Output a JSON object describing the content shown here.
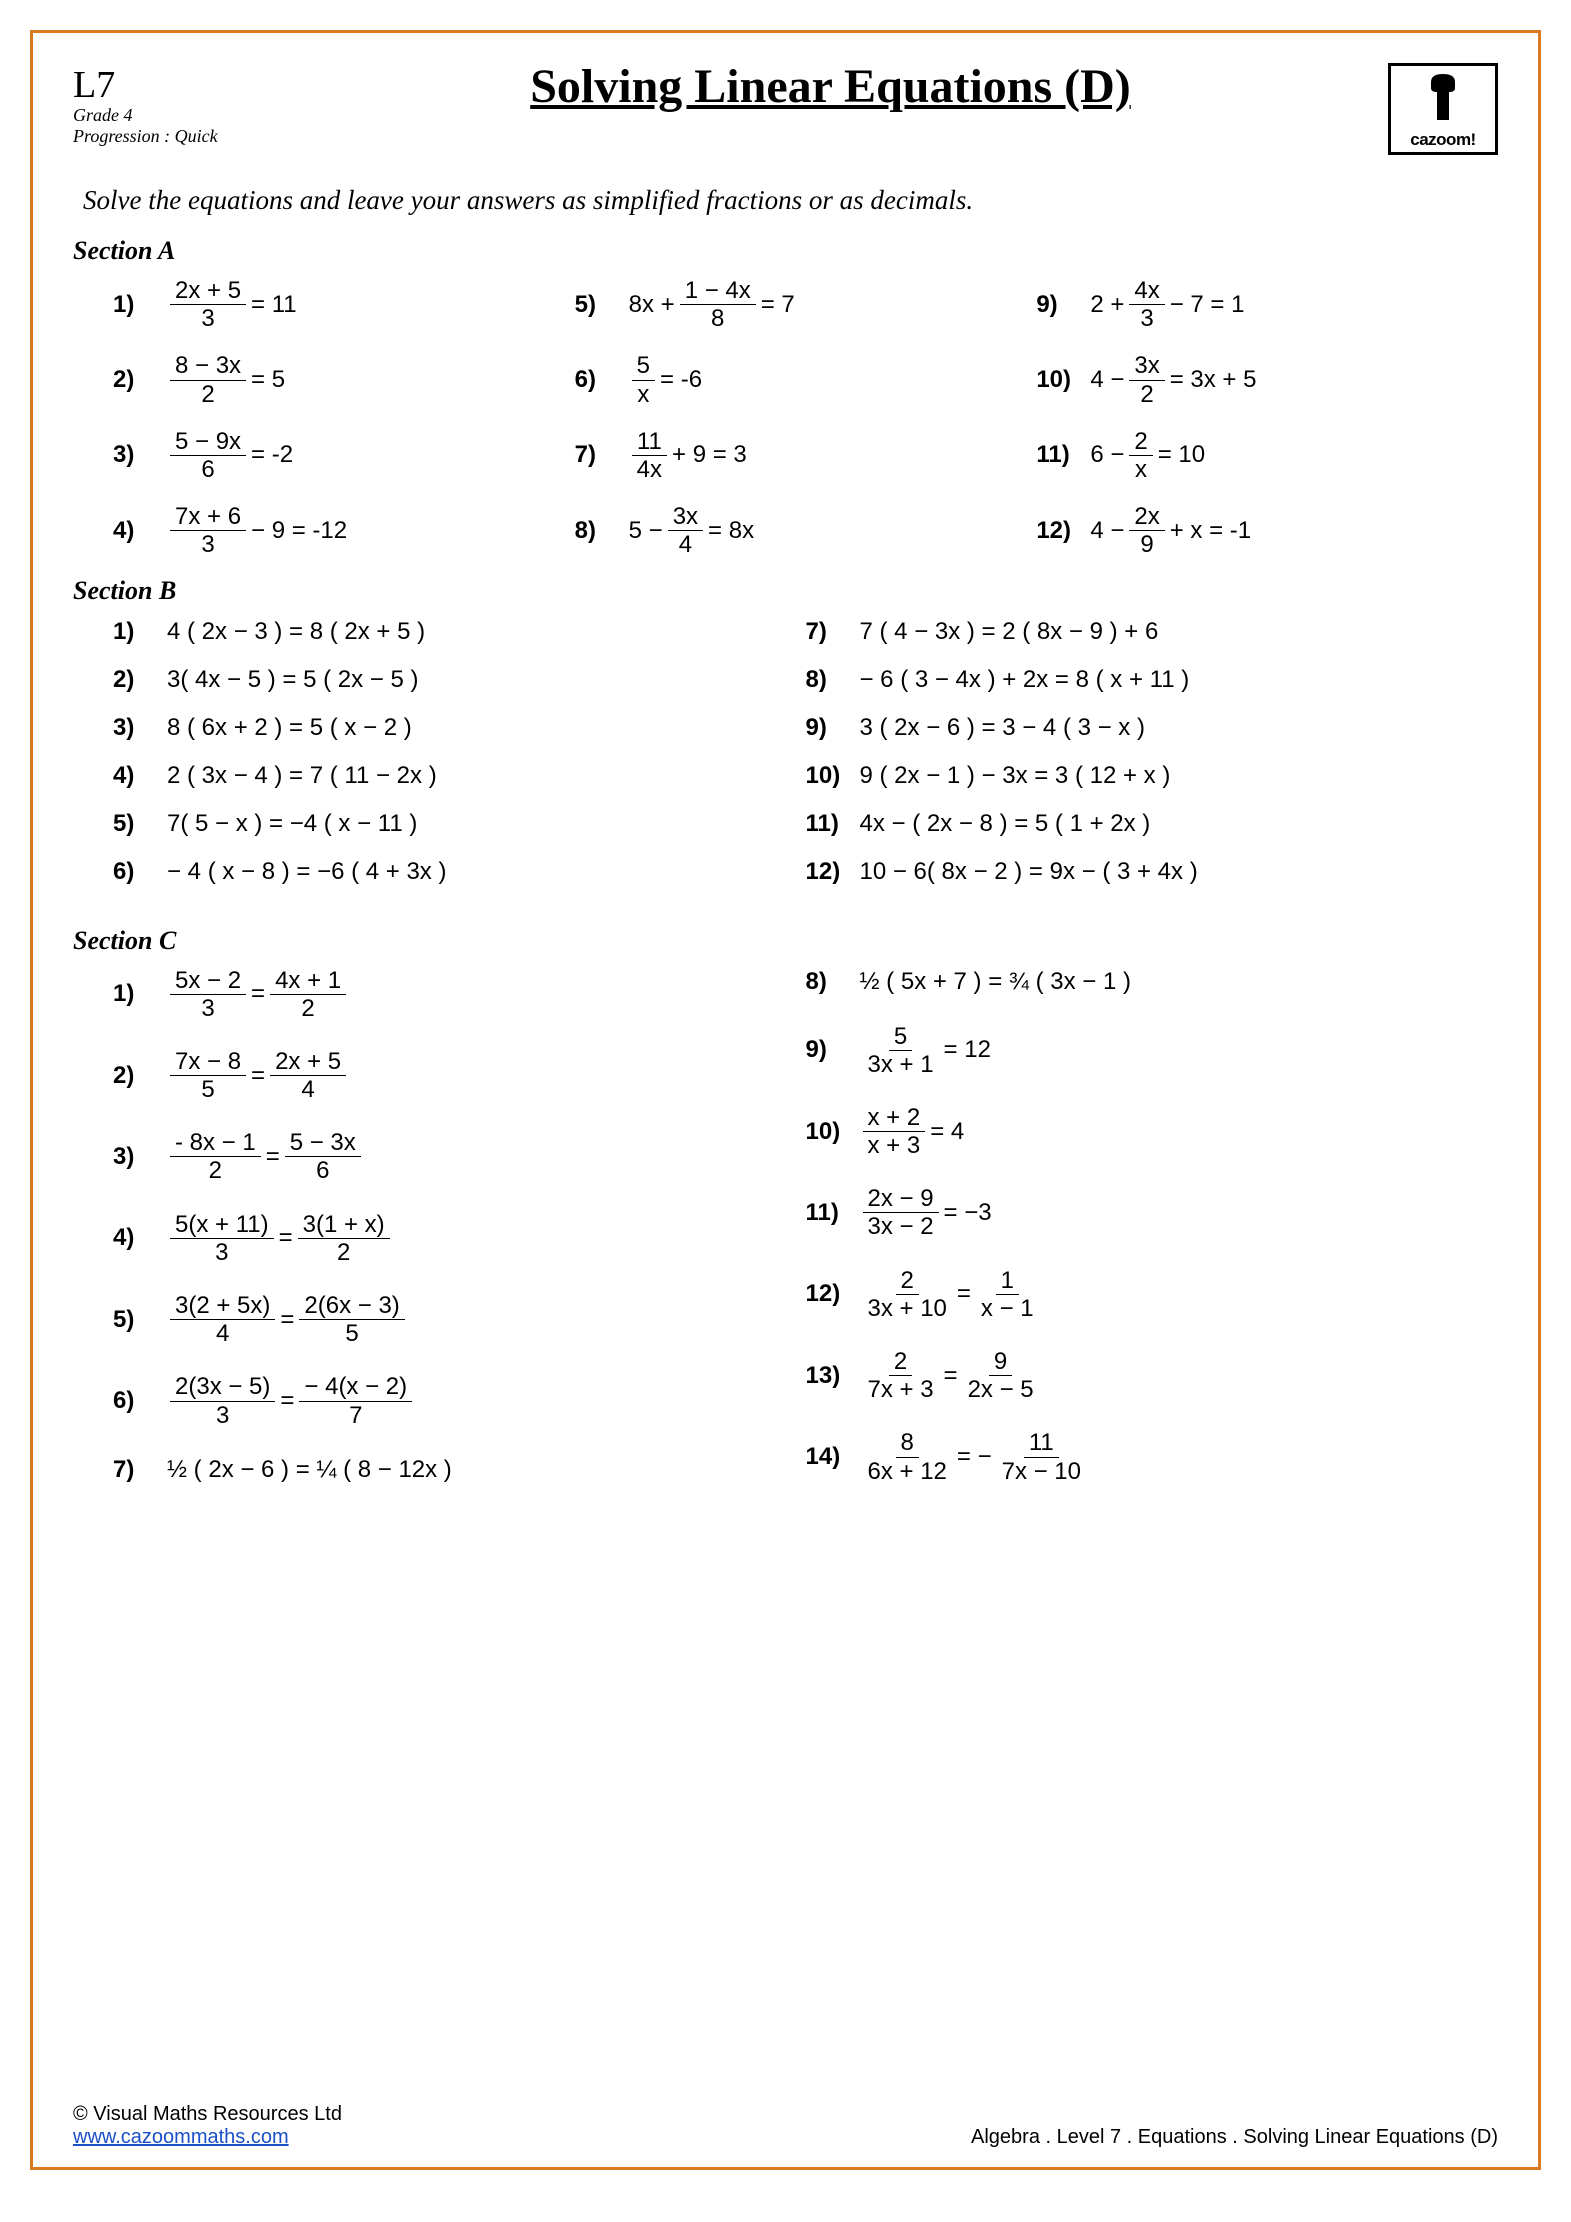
{
  "header": {
    "level_code": "L7",
    "grade": "Grade 4",
    "progression": "Progression : Quick",
    "title": "Solving Linear Equations (D)",
    "logo_text": "cazoom!"
  },
  "instruction": "Solve the equations and leave your answers as simplified fractions or as decimals.",
  "sections": {
    "a_label": "Section  A",
    "b_label": "Section  B",
    "c_label": "Section  C"
  },
  "section_a": [
    {
      "n": "1)",
      "frac": {
        "num": "2x + 5",
        "den": "3"
      },
      "after": " = 11"
    },
    {
      "n": "5)",
      "before": "8x + ",
      "frac": {
        "num": "1 − 4x",
        "den": "8"
      },
      "after": " = 7"
    },
    {
      "n": "9)",
      "before": "2 + ",
      "frac": {
        "num": "4x",
        "den": "3"
      },
      "after": " − 7 = 1"
    },
    {
      "n": "2)",
      "frac": {
        "num": "8 − 3x",
        "den": "2"
      },
      "after": " = 5"
    },
    {
      "n": "6)",
      "frac": {
        "num": "5",
        "den": "x"
      },
      "after": " = -6"
    },
    {
      "n": "10)",
      "before": "4 − ",
      "frac": {
        "num": "3x",
        "den": "2"
      },
      "after": " = 3x + 5"
    },
    {
      "n": "3)",
      "frac": {
        "num": "5 − 9x",
        "den": "6"
      },
      "after": " = -2"
    },
    {
      "n": "7)",
      "frac": {
        "num": "11",
        "den": "4x"
      },
      "after": " + 9 = 3"
    },
    {
      "n": "11)",
      "before": "6 − ",
      "frac": {
        "num": "2",
        "den": "x"
      },
      "after": " = 10"
    },
    {
      "n": "4)",
      "frac": {
        "num": "7x + 6",
        "den": "3"
      },
      "after": " − 9 = -12"
    },
    {
      "n": "8)",
      "before": "5 − ",
      "frac": {
        "num": "3x",
        "den": "4"
      },
      "after": " = 8x"
    },
    {
      "n": "12)",
      "before": "4 − ",
      "frac": {
        "num": "2x",
        "den": "9"
      },
      "after": " + x = -1"
    }
  ],
  "section_b": [
    {
      "n": "1)",
      "eq": "4 ( 2x − 3 ) = 8 ( 2x + 5 )"
    },
    {
      "n": "7)",
      "eq": "7 ( 4 − 3x ) = 2 ( 8x − 9 ) + 6"
    },
    {
      "n": "2)",
      "eq": "3( 4x − 5 ) = 5 ( 2x − 5 )"
    },
    {
      "n": "8)",
      "eq": "− 6 ( 3 − 4x ) + 2x = 8 ( x + 11 )"
    },
    {
      "n": "3)",
      "eq": "8 ( 6x + 2 ) = 5 ( x − 2 )"
    },
    {
      "n": "9)",
      "eq": "3 ( 2x − 6 ) = 3 − 4 ( 3 − x )"
    },
    {
      "n": "4)",
      "eq": "2 ( 3x − 4 ) = 7 ( 11 − 2x )"
    },
    {
      "n": "10)",
      "eq": "9 ( 2x − 1 ) − 3x = 3 ( 12 + x )"
    },
    {
      "n": "5)",
      "eq": "7( 5 − x ) = −4 ( x − 11 )"
    },
    {
      "n": "11)",
      "eq": "4x − ( 2x − 8 ) = 5 ( 1 + 2x )"
    },
    {
      "n": "6)",
      "eq": "− 4 ( x − 8 ) = −6 ( 4 + 3x )"
    },
    {
      "n": "12)",
      "eq": "10 − 6( 8x − 2 ) = 9x − ( 3 + 4x )"
    }
  ],
  "section_c_left": [
    {
      "n": "1)",
      "f1": {
        "num": "5x − 2",
        "den": "3"
      },
      "mid": " = ",
      "f2": {
        "num": "4x + 1",
        "den": "2"
      }
    },
    {
      "n": "2)",
      "f1": {
        "num": "7x − 8",
        "den": "5"
      },
      "mid": " = ",
      "f2": {
        "num": "2x + 5",
        "den": "4"
      }
    },
    {
      "n": "3)",
      "f1": {
        "num": "- 8x − 1",
        "den": "2"
      },
      "mid": " = ",
      "f2": {
        "num": "5 − 3x",
        "den": "6"
      }
    },
    {
      "n": "4)",
      "f1": {
        "num": "5(x + 11)",
        "den": "3"
      },
      "mid": " = ",
      "f2": {
        "num": "3(1 + x)",
        "den": "2"
      }
    },
    {
      "n": "5)",
      "f1": {
        "num": "3(2 + 5x)",
        "den": "4"
      },
      "mid": " = ",
      "f2": {
        "num": "2(6x − 3)",
        "den": "5"
      }
    },
    {
      "n": "6)",
      "f1": {
        "num": "2(3x − 5)",
        "den": "3"
      },
      "mid": " = ",
      "f2": {
        "num": "− 4(x − 2)",
        "den": "7"
      }
    },
    {
      "n": "7)",
      "plain": "½ ( 2x − 6 ) = ¼ ( 8 − 12x )"
    }
  ],
  "section_c_right": [
    {
      "n": "8)",
      "plain": "½ ( 5x + 7 ) = ¾ ( 3x − 1 )"
    },
    {
      "n": "9)",
      "f1": {
        "num": "5",
        "den": "3x + 1"
      },
      "after": " = 12"
    },
    {
      "n": "10)",
      "f1": {
        "num": "x + 2",
        "den": "x + 3"
      },
      "after": " = 4"
    },
    {
      "n": "11)",
      "f1": {
        "num": "2x − 9",
        "den": "3x − 2"
      },
      "after": " = −3"
    },
    {
      "n": "12)",
      "f1": {
        "num": "2",
        "den": "3x + 10"
      },
      "mid": " = ",
      "f2": {
        "num": "1",
        "den": "x − 1"
      }
    },
    {
      "n": "13)",
      "f1": {
        "num": "2",
        "den": "7x + 3"
      },
      "mid": " = ",
      "f2": {
        "num": "9",
        "den": "2x − 5"
      }
    },
    {
      "n": "14)",
      "f1": {
        "num": "8",
        "den": "6x + 12"
      },
      "mid": " = − ",
      "f2": {
        "num": "11",
        "den": "7x − 10"
      }
    }
  ],
  "footer": {
    "copyright": "© Visual Maths Resources Ltd",
    "link": "www.cazoommaths.com",
    "path": "Algebra    .   Level  7   .   Equations    .    Solving Linear Equations (D)"
  },
  "colors": {
    "border": "#d97a1f",
    "link": "#1a4fc7",
    "text": "#000000",
    "background": "#ffffff"
  }
}
